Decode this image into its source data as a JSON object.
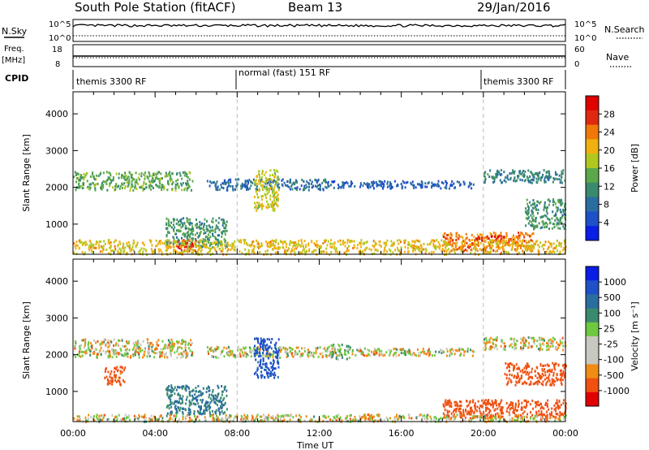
{
  "header": {
    "station": "South Pole Station (fitACF)",
    "beam": "Beam 13",
    "date": "29/Jan/2016"
  },
  "labels": {
    "nsky": "N.Sky",
    "freq": "Freq.",
    "mhz": "[MHz]",
    "cpid": "CPID",
    "nsearch": "N.Search",
    "nave": "Nave",
    "left_top_hi": "10^5",
    "left_top_lo": "10^0",
    "right_top_hi": "10^5",
    "right_top_lo": "10^0",
    "freq_hi": "18",
    "freq_lo": "8",
    "nave_hi": "60",
    "nave_lo": "0"
  },
  "cpid_segments": [
    "themis 3300 RF",
    "normal (fast) 151 RF",
    "themis 3300 RF"
  ],
  "xaxis": {
    "label": "Time UT",
    "ticks": [
      "00:00",
      "04:00",
      "08:00",
      "12:00",
      "16:00",
      "20:00",
      "00:00"
    ]
  },
  "colors": {
    "power": [
      "#0a1ee6",
      "#1e50c8",
      "#2a6ea0",
      "#3a8a6e",
      "#5aa84a",
      "#b0c81e",
      "#f0b010",
      "#f07808",
      "#e02810",
      "#e00000"
    ],
    "velocity": [
      "#e00000",
      "#f05010",
      "#f08c14",
      "#c8c8c0",
      "#c8c8c0",
      "#6ec840",
      "#3a8a6e",
      "#2a6ea0",
      "#1e50c8",
      "#0a1ee6"
    ]
  },
  "chart_data": [
    {
      "type": "heatmap",
      "title": "Power",
      "ylabel": "Slant Range [km]",
      "xlabel": "Time UT",
      "x_ticks": [
        "00:00",
        "04:00",
        "08:00",
        "12:00",
        "16:00",
        "20:00",
        "00:00"
      ],
      "y_ticks": [
        1000,
        2000,
        3000,
        4000
      ],
      "ylim": [
        180,
        4600
      ],
      "colorbar": {
        "label": "Power [dB]",
        "ticks": [
          4,
          8,
          12,
          16,
          20,
          24,
          28
        ],
        "range": [
          0,
          32
        ]
      },
      "regions": [
        {
          "t0": 0.0,
          "t1": 5.8,
          "r0": 1950,
          "r1": 2450,
          "level": 14
        },
        {
          "t0": 6.5,
          "t1": 12.5,
          "r0": 1950,
          "r1": 2250,
          "level": 8
        },
        {
          "t0": 12.5,
          "t1": 19.5,
          "r0": 2000,
          "r1": 2200,
          "level": 6
        },
        {
          "t0": 20.0,
          "t1": 24.0,
          "r0": 2150,
          "r1": 2500,
          "level": 10
        },
        {
          "t0": 4.5,
          "t1": 7.5,
          "r0": 400,
          "r1": 1200,
          "level": 12
        },
        {
          "t0": 8.8,
          "t1": 10.0,
          "r0": 1400,
          "r1": 2500,
          "level": 18
        },
        {
          "t0": 18.0,
          "t1": 22.5,
          "r0": 300,
          "r1": 800,
          "level": 24
        },
        {
          "t0": 19.5,
          "t1": 21.0,
          "r0": 550,
          "r1": 700,
          "level": 30
        },
        {
          "t0": 22.0,
          "t1": 24.0,
          "r0": 900,
          "r1": 1700,
          "level": 12
        },
        {
          "t0": 5.0,
          "t1": 6.0,
          "r0": 300,
          "r1": 600,
          "level": 28
        },
        {
          "t0": 0.0,
          "t1": 24.0,
          "r0": 200,
          "r1": 600,
          "level": 20
        }
      ]
    },
    {
      "type": "heatmap",
      "title": "Velocity",
      "ylabel": "Slant Range [km]",
      "xlabel": "Time UT",
      "x_ticks": [
        "00:00",
        "04:00",
        "08:00",
        "12:00",
        "16:00",
        "20:00",
        "00:00"
      ],
      "y_ticks": [
        1000,
        2000,
        3000,
        4000
      ],
      "ylim": [
        180,
        4600
      ],
      "colorbar": {
        "label": "Velocity [m s⁻¹]",
        "ticks": [
          1000,
          500,
          100,
          25,
          -25,
          -100,
          -500,
          -1000
        ]
      },
      "regions": [
        {
          "t0": 0.0,
          "t1": 5.8,
          "r0": 1950,
          "r1": 2450,
          "level": 0
        },
        {
          "t0": 6.5,
          "t1": 12.5,
          "r0": 1950,
          "r1": 2250,
          "level": 0
        },
        {
          "t0": 12.5,
          "t1": 19.5,
          "r0": 2000,
          "r1": 2200,
          "level": 0
        },
        {
          "t0": 20.0,
          "t1": 24.0,
          "r0": 2150,
          "r1": 2500,
          "level": 0
        },
        {
          "t0": 1.5,
          "t1": 2.5,
          "r0": 1200,
          "r1": 1700,
          "level": -200
        },
        {
          "t0": 4.5,
          "t1": 7.5,
          "r0": 400,
          "r1": 1200,
          "level": 300
        },
        {
          "t0": 8.8,
          "t1": 10.0,
          "r0": 1400,
          "r1": 2500,
          "level": 600
        },
        {
          "t0": 12.5,
          "t1": 13.5,
          "r0": 1900,
          "r1": 2300,
          "level": 100
        },
        {
          "t0": 18.0,
          "t1": 24.0,
          "r0": 300,
          "r1": 800,
          "level": -300
        },
        {
          "t0": 21.0,
          "t1": 24.0,
          "r0": 1200,
          "r1": 1800,
          "level": -300
        },
        {
          "t0": 0.0,
          "t1": 24.0,
          "r0": 200,
          "r1": 400,
          "level": 0
        }
      ]
    }
  ]
}
